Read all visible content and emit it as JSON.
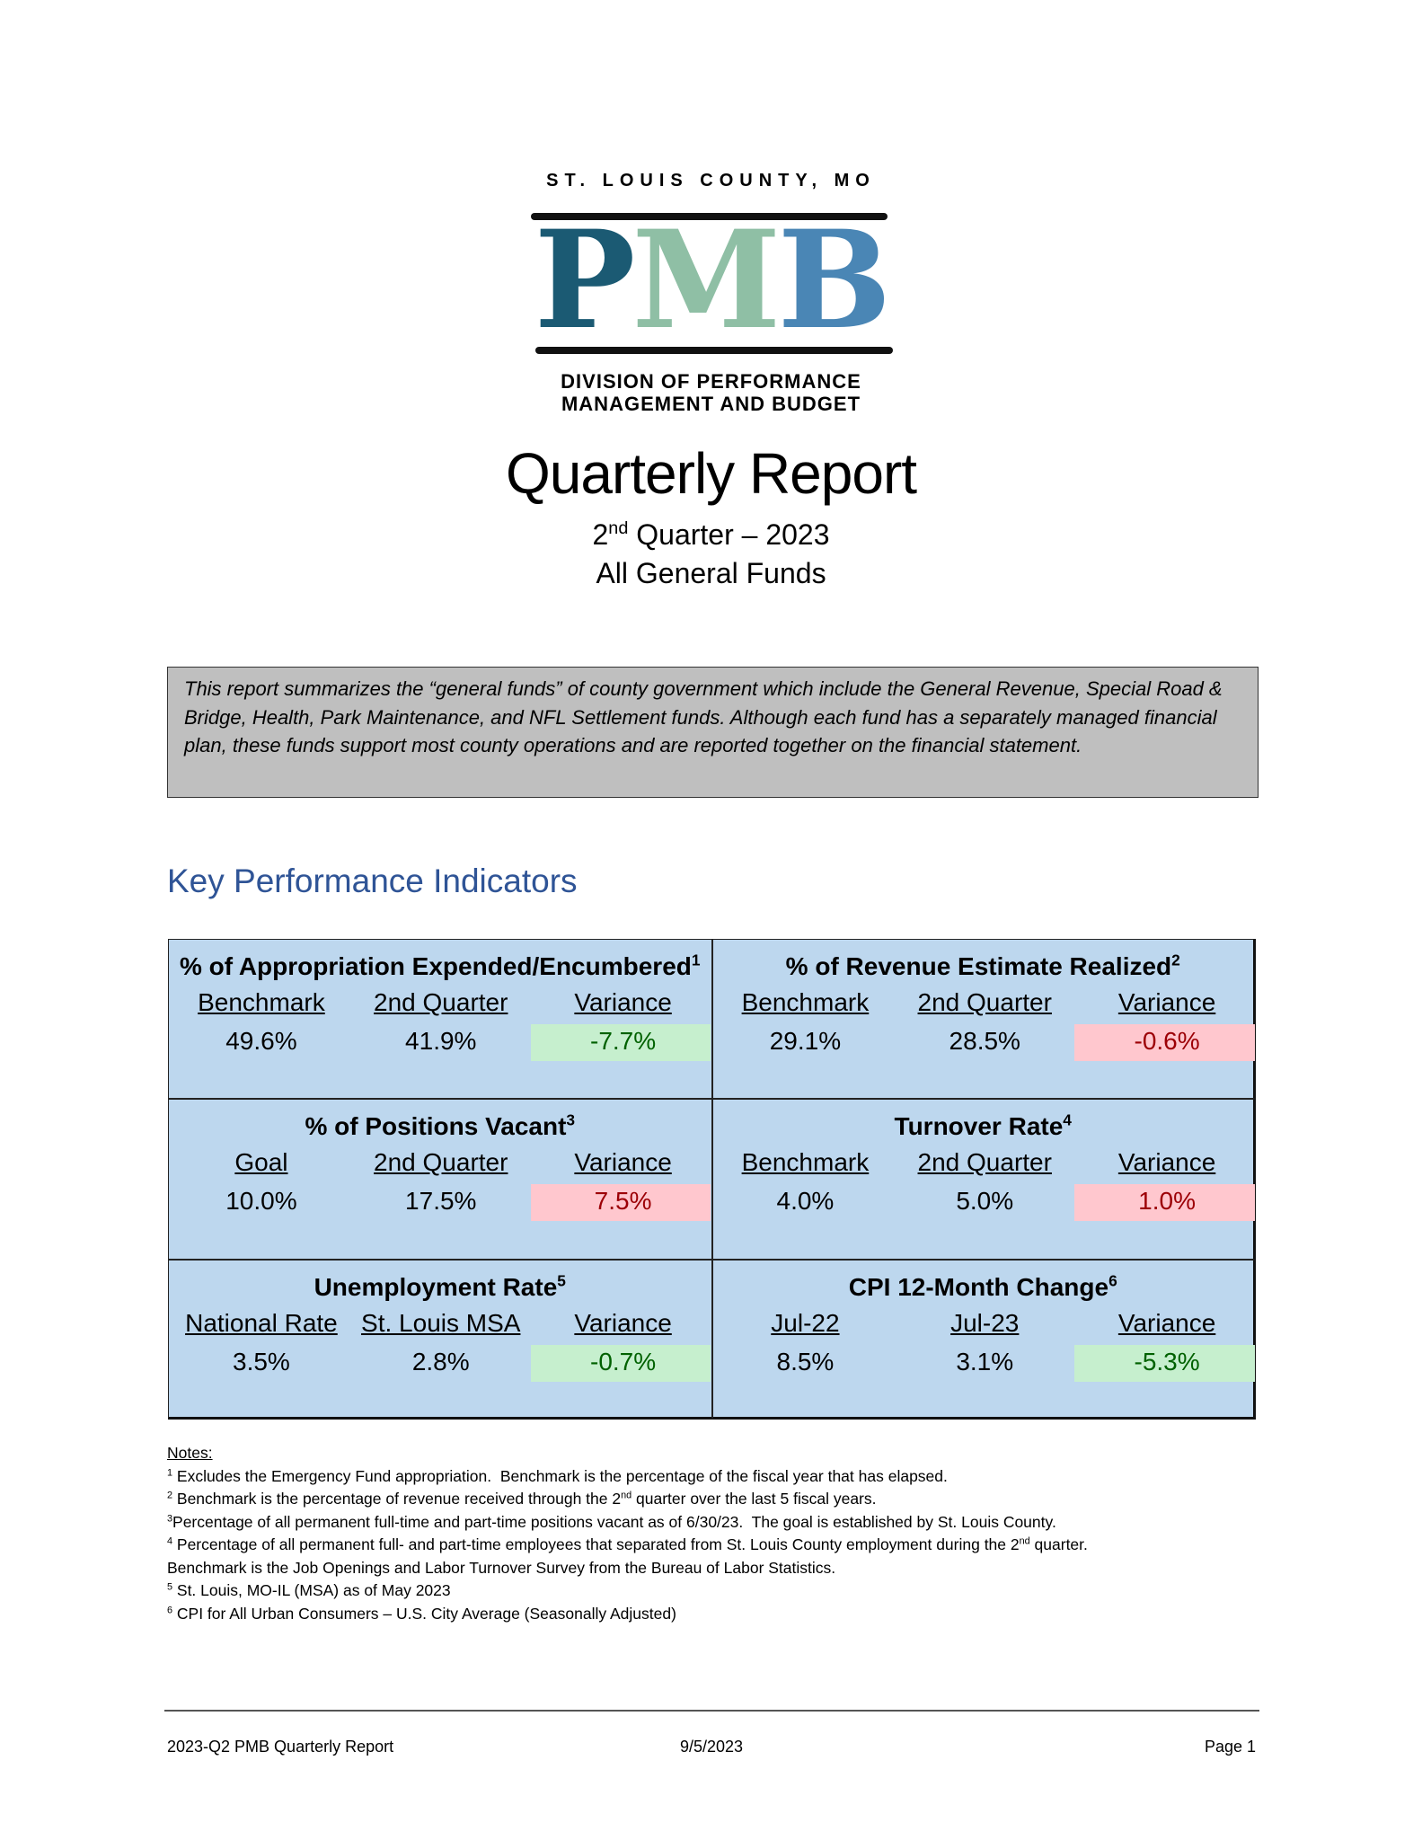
{
  "logo": {
    "county": "ST. LOUIS COUNTY, MO",
    "letters": [
      "P",
      "M",
      "B"
    ],
    "letter_colors": [
      "#1b5a73",
      "#8fbfa5",
      "#4a86b5"
    ],
    "division": [
      "DIVISION OF PERFORMANCE",
      "MANAGEMENT AND BUDGET"
    ]
  },
  "header": {
    "title": "Quarterly Report",
    "quarter_number": "2",
    "quarter_sup": "nd",
    "quarter_text": " Quarter – 2023",
    "funds": "All General Funds"
  },
  "summary": "This report summarizes the “general funds” of county government which include the General Revenue, Special Road & Bridge, Health, Park Maintenance, and NFL Settlement funds. Although each fund has a separately managed financial plan, these funds support most county operations and are reported together on the financial statement.",
  "kpi": {
    "heading": "Key Performance Indicators",
    "cells": [
      {
        "title": "% of Appropriation Expended/Encumbered",
        "note": "1",
        "headers": [
          "Benchmark",
          "2nd Quarter",
          "Variance"
        ],
        "values": [
          "49.6%",
          "41.9%",
          "-7.7%"
        ],
        "variance_color": "#c6efce",
        "variance_text_color": "#006100"
      },
      {
        "title": "% of Revenue Estimate Realized",
        "note": "2",
        "headers": [
          "Benchmark",
          "2nd Quarter",
          "Variance"
        ],
        "values": [
          "29.1%",
          "28.5%",
          "-0.6%"
        ],
        "variance_color": "#ffc7ce",
        "variance_text_color": "#9c0006"
      },
      {
        "title": "% of Positions Vacant",
        "note": "3",
        "headers": [
          "Goal",
          "2nd Quarter",
          "Variance"
        ],
        "values": [
          "10.0%",
          "17.5%",
          "7.5%"
        ],
        "variance_color": "#ffc7ce",
        "variance_text_color": "#9c0006"
      },
      {
        "title": "Turnover Rate",
        "note": "4",
        "headers": [
          "Benchmark",
          "2nd Quarter",
          "Variance"
        ],
        "values": [
          "4.0%",
          "5.0%",
          "1.0%"
        ],
        "variance_color": "#ffc7ce",
        "variance_text_color": "#9c0006"
      },
      {
        "title": "Unemployment Rate",
        "note": "5",
        "headers": [
          "National Rate",
          "St. Louis MSA",
          "Variance"
        ],
        "values": [
          "3.5%",
          "2.8%",
          "-0.7%"
        ],
        "variance_color": "#c6efce",
        "variance_text_color": "#006100"
      },
      {
        "title": "CPI 12-Month Change",
        "note": "6",
        "headers": [
          "Jul-22",
          "Jul-23",
          "Variance"
        ],
        "values": [
          "8.5%",
          "3.1%",
          "-5.3%"
        ],
        "variance_color": "#c6efce",
        "variance_text_color": "#006100"
      }
    ]
  },
  "notes": {
    "heading": "Notes:",
    "lines": [
      [
        {
          "sup": "1"
        },
        {
          "text": " Excludes the Emergency Fund appropriation.  Benchmark is the percentage of the fiscal year that has elapsed."
        }
      ],
      [
        {
          "sup": "2"
        },
        {
          "text": " Benchmark is the percentage of revenue received through the 2"
        },
        {
          "sup": "nd"
        },
        {
          "text": " quarter over the last 5 fiscal years."
        }
      ],
      [
        {
          "sup": "3"
        },
        {
          "text": "Percentage of all permanent full-time and part-time positions vacant as of 6/30/23.  The goal is established by St. Louis County."
        }
      ],
      [
        {
          "sup": "4"
        },
        {
          "text": " Percentage of all permanent full- and part-time employees that separated from St. Louis County employment during the 2"
        },
        {
          "sup": "nd"
        },
        {
          "text": " quarter."
        }
      ],
      [
        {
          "text": "Benchmark is the Job Openings and Labor Turnover Survey from the Bureau of Labor Statistics."
        }
      ],
      [
        {
          "sup": "5"
        },
        {
          "text": " St. Louis, MO-IL (MSA) as of May 2023"
        }
      ],
      [
        {
          "sup": "6"
        },
        {
          "text": " CPI for All Urban Consumers – U.S. City Average (Seasonally Adjusted)"
        }
      ]
    ]
  },
  "footer": {
    "left": "2023-Q2 PMB Quarterly Report",
    "center": "9/5/2023",
    "right": "Page 1"
  }
}
